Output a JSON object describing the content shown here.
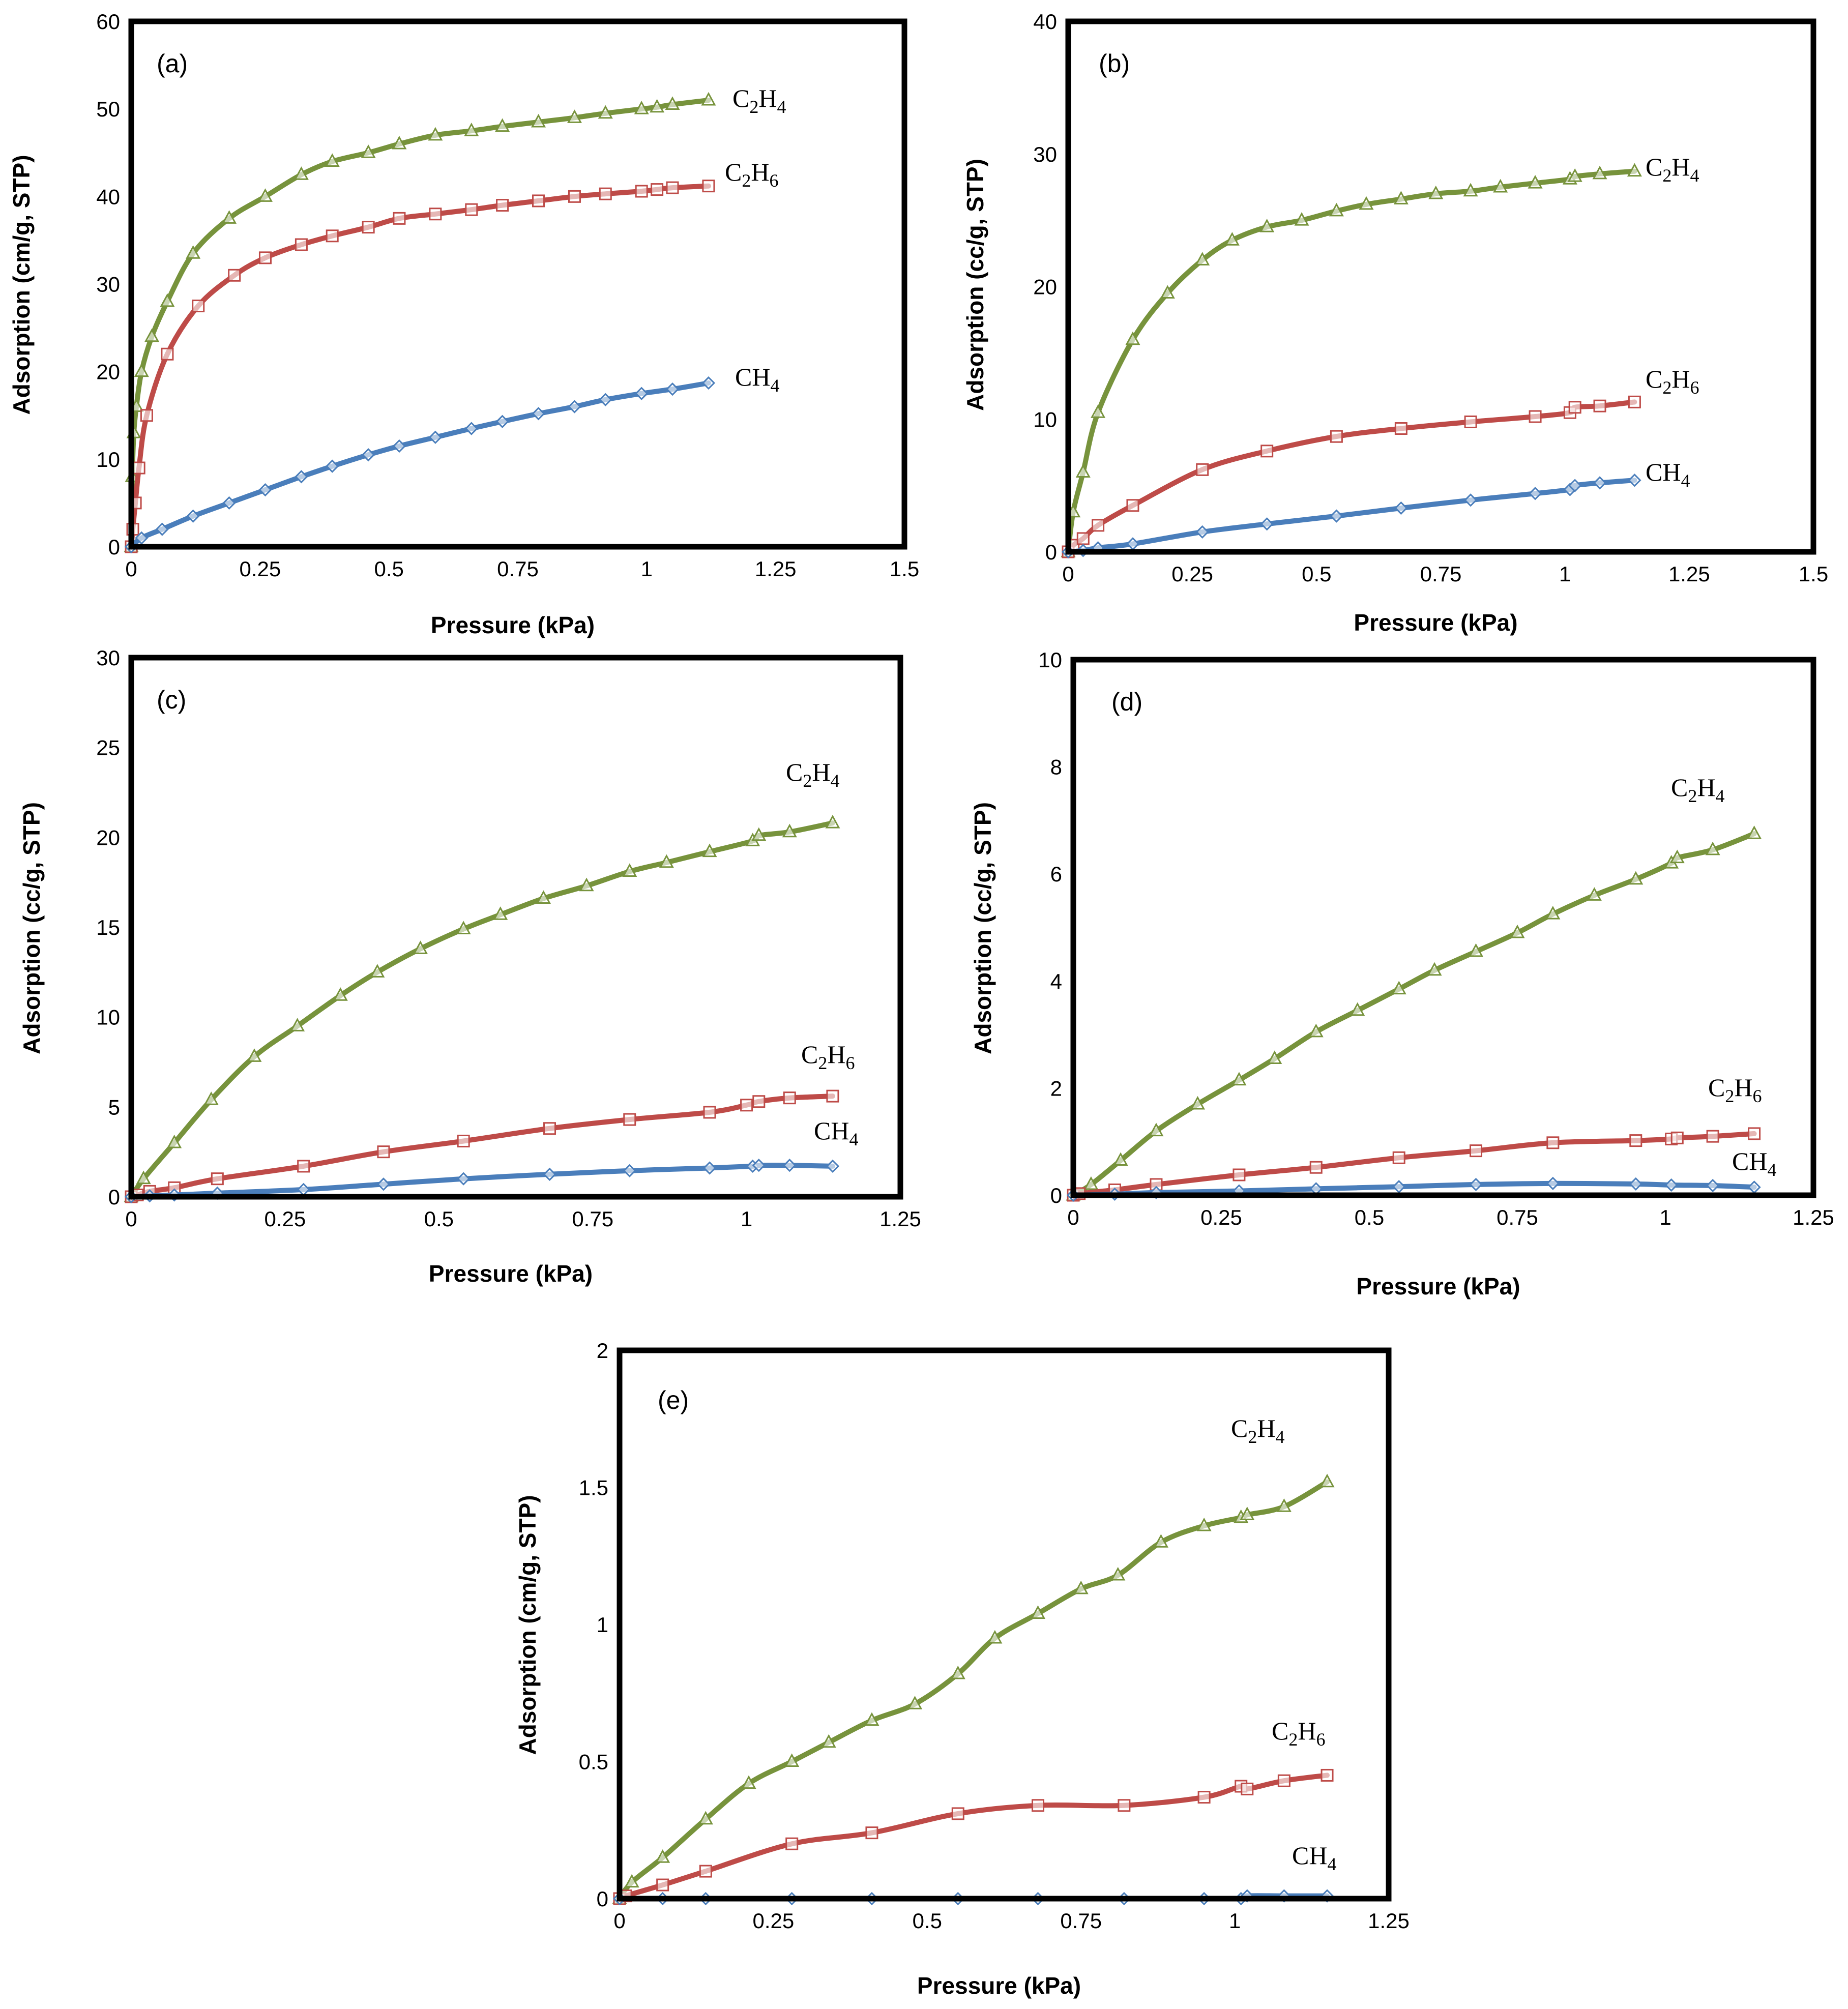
{
  "colors": {
    "CH4": "#4a7ebb",
    "C2H6": "#be4b48",
    "C2H4": "#77933c"
  },
  "markers": {
    "CH4": "diamond",
    "C2H6": "square",
    "C2H4": "triangle"
  },
  "chart_data": [
    {
      "type": "line",
      "panel": "(a)",
      "xlabel": "Pressure (kPa)",
      "ylabel": "Adsorption (cm/g, STP)",
      "xlim": [
        0,
        1.5
      ],
      "ylim": [
        0,
        60
      ],
      "xticks": [
        "0",
        "0.25",
        "0.5",
        "0.75",
        "1",
        "1.25",
        "1.5"
      ],
      "yticks": [
        "0",
        "10",
        "20",
        "30",
        "40",
        "50",
        "60"
      ],
      "series": [
        {
          "name": "C2H4",
          "label": {
            "main": "C",
            "sub1": "2",
            "mid": "H",
            "sub2": "4"
          },
          "x": [
            0,
            0.002,
            0.005,
            0.01,
            0.02,
            0.04,
            0.07,
            0.12,
            0.19,
            0.26,
            0.33,
            0.39,
            0.46,
            0.52,
            0.59,
            0.66,
            0.72,
            0.79,
            0.86,
            0.92,
            0.99,
            1.02,
            1.05,
            1.12
          ],
          "y": [
            0,
            8,
            13,
            16,
            20,
            24,
            28,
            33.5,
            37.5,
            40,
            42.5,
            44,
            45,
            46,
            47,
            47.5,
            48,
            48.5,
            49,
            49.5,
            50,
            50.2,
            50.5,
            51
          ]
        },
        {
          "name": "C2H6",
          "label": {
            "main": "C",
            "sub1": "2",
            "mid": "H",
            "sub2": "6"
          },
          "x": [
            0,
            0.003,
            0.008,
            0.015,
            0.03,
            0.07,
            0.13,
            0.2,
            0.26,
            0.33,
            0.39,
            0.46,
            0.52,
            0.59,
            0.66,
            0.72,
            0.79,
            0.86,
            0.92,
            0.99,
            1.02,
            1.05,
            1.12
          ],
          "y": [
            0,
            2,
            5,
            9,
            15,
            22,
            27.5,
            31,
            33,
            34.5,
            35.5,
            36.5,
            37.5,
            38,
            38.5,
            39,
            39.5,
            40,
            40.3,
            40.6,
            40.8,
            41,
            41.2
          ]
        },
        {
          "name": "CH4",
          "label": {
            "main": "CH",
            "sub1": "4",
            "mid": "",
            "sub2": ""
          },
          "x": [
            0,
            0.02,
            0.06,
            0.12,
            0.19,
            0.26,
            0.33,
            0.39,
            0.46,
            0.52,
            0.59,
            0.66,
            0.72,
            0.79,
            0.86,
            0.92,
            0.99,
            1.05,
            1.12
          ],
          "y": [
            0,
            1,
            2,
            3.5,
            5,
            6.5,
            8,
            9.2,
            10.5,
            11.5,
            12.5,
            13.5,
            14.3,
            15.2,
            16,
            16.8,
            17.5,
            18,
            18.7
          ]
        }
      ]
    },
    {
      "type": "line",
      "panel": "(b)",
      "xlabel": "Pressure (kPa)",
      "ylabel": "Adsorption (cc/g, STP)",
      "xlim": [
        0,
        1.5
      ],
      "ylim": [
        0,
        40
      ],
      "xticks": [
        "0",
        "0.25",
        "0.5",
        "0.75",
        "1",
        "1.25",
        "1.5"
      ],
      "yticks": [
        "0",
        "10",
        "20",
        "30",
        "40"
      ],
      "series": [
        {
          "name": "C2H4",
          "label": {
            "main": "C",
            "sub1": "2",
            "mid": "H",
            "sub2": "4"
          },
          "x": [
            0,
            0.01,
            0.03,
            0.06,
            0.13,
            0.2,
            0.27,
            0.33,
            0.4,
            0.47,
            0.54,
            0.6,
            0.67,
            0.74,
            0.81,
            0.87,
            0.94,
            1.01,
            1.02,
            1.07,
            1.14
          ],
          "y": [
            0,
            3,
            6,
            10.5,
            16,
            19.5,
            22,
            23.5,
            24.5,
            25,
            25.7,
            26.2,
            26.6,
            27,
            27.2,
            27.5,
            27.8,
            28.1,
            28.3,
            28.5,
            28.7
          ]
        },
        {
          "name": "C2H6",
          "label": {
            "main": "C",
            "sub1": "2",
            "mid": "H",
            "sub2": "6"
          },
          "x": [
            0,
            0.01,
            0.03,
            0.06,
            0.13,
            0.27,
            0.4,
            0.54,
            0.67,
            0.81,
            0.94,
            1.01,
            1.02,
            1.07,
            1.14
          ],
          "y": [
            0,
            0.5,
            1,
            2,
            3.5,
            6.2,
            7.6,
            8.7,
            9.3,
            9.8,
            10.2,
            10.5,
            10.9,
            11,
            11.3
          ]
        },
        {
          "name": "CH4",
          "label": {
            "main": "CH",
            "sub1": "4",
            "mid": "",
            "sub2": ""
          },
          "x": [
            0,
            0.03,
            0.06,
            0.13,
            0.27,
            0.4,
            0.54,
            0.67,
            0.81,
            0.94,
            1.01,
            1.02,
            1.07,
            1.14
          ],
          "y": [
            0,
            0.1,
            0.3,
            0.6,
            1.5,
            2.1,
            2.7,
            3.3,
            3.9,
            4.4,
            4.7,
            5,
            5.2,
            5.4
          ]
        }
      ]
    },
    {
      "type": "line",
      "panel": "(c)",
      "xlabel": "Pressure (kPa)",
      "ylabel": "Adsorption (cc/g, STP)",
      "xlim": [
        0,
        1.25
      ],
      "ylim": [
        0,
        30
      ],
      "xticks": [
        "0",
        "0.25",
        "0.5",
        "0.75",
        "1",
        "1.25"
      ],
      "yticks": [
        "0",
        "5",
        "10",
        "15",
        "20",
        "25",
        "30"
      ],
      "series": [
        {
          "name": "C2H4",
          "label": {
            "main": "C",
            "sub1": "2",
            "mid": "H",
            "sub2": "4"
          },
          "x": [
            0,
            0.02,
            0.07,
            0.13,
            0.2,
            0.27,
            0.34,
            0.4,
            0.47,
            0.54,
            0.6,
            0.67,
            0.74,
            0.81,
            0.87,
            0.94,
            1.01,
            1.02,
            1.07,
            1.14
          ],
          "y": [
            0,
            1,
            3,
            5.4,
            7.8,
            9.5,
            11.2,
            12.5,
            13.8,
            14.9,
            15.7,
            16.6,
            17.3,
            18.1,
            18.6,
            19.2,
            19.8,
            20.1,
            20.3,
            20.8
          ]
        },
        {
          "name": "C2H6",
          "label": {
            "main": "C",
            "sub1": "2",
            "mid": "H",
            "sub2": "6"
          },
          "x": [
            0,
            0.01,
            0.03,
            0.07,
            0.14,
            0.28,
            0.41,
            0.54,
            0.68,
            0.81,
            0.94,
            1,
            1.02,
            1.07,
            1.14
          ],
          "y": [
            0,
            0.1,
            0.3,
            0.5,
            1,
            1.7,
            2.5,
            3.1,
            3.8,
            4.3,
            4.7,
            5.1,
            5.3,
            5.5,
            5.6
          ]
        },
        {
          "name": "CH4",
          "label": {
            "main": "CH",
            "sub1": "4",
            "mid": "",
            "sub2": ""
          },
          "x": [
            0,
            0.03,
            0.07,
            0.14,
            0.28,
            0.41,
            0.54,
            0.68,
            0.81,
            0.94,
            1.01,
            1.02,
            1.07,
            1.14
          ],
          "y": [
            0,
            0.05,
            0.1,
            0.2,
            0.4,
            0.7,
            1,
            1.25,
            1.45,
            1.6,
            1.7,
            1.75,
            1.75,
            1.7
          ]
        }
      ]
    },
    {
      "type": "line",
      "panel": "(d)",
      "xlabel": "Pressure (kPa)",
      "ylabel": "Adsorption (cc/g, STP)",
      "xlim": [
        0,
        1.25
      ],
      "ylim": [
        0,
        10
      ],
      "xticks": [
        "0",
        "0.25",
        "0.5",
        "0.75",
        "1",
        "1.25"
      ],
      "yticks": [
        "0",
        "2",
        "4",
        "6",
        "8",
        "10"
      ],
      "series": [
        {
          "name": "C2H4",
          "label": {
            "main": "C",
            "sub1": "2",
            "mid": "H",
            "sub2": "4"
          },
          "x": [
            0,
            0.03,
            0.08,
            0.14,
            0.21,
            0.28,
            0.34,
            0.41,
            0.48,
            0.55,
            0.61,
            0.68,
            0.75,
            0.81,
            0.88,
            0.95,
            1.01,
            1.02,
            1.08,
            1.15
          ],
          "y": [
            0,
            0.2,
            0.65,
            1.2,
            1.7,
            2.15,
            2.55,
            3.05,
            3.45,
            3.85,
            4.2,
            4.55,
            4.9,
            5.25,
            5.6,
            5.9,
            6.2,
            6.3,
            6.45,
            6.75
          ]
        },
        {
          "name": "C2H6",
          "label": {
            "main": "C",
            "sub1": "2",
            "mid": "H",
            "sub2": "6"
          },
          "x": [
            0,
            0.01,
            0.07,
            0.14,
            0.28,
            0.41,
            0.55,
            0.68,
            0.81,
            0.95,
            1.01,
            1.02,
            1.08,
            1.15
          ],
          "y": [
            0,
            0.03,
            0.1,
            0.2,
            0.38,
            0.52,
            0.7,
            0.83,
            0.98,
            1.02,
            1.05,
            1.07,
            1.1,
            1.15
          ]
        },
        {
          "name": "CH4",
          "label": {
            "main": "CH",
            "sub1": "4",
            "mid": "",
            "sub2": ""
          },
          "x": [
            0,
            0.07,
            0.14,
            0.28,
            0.41,
            0.55,
            0.68,
            0.81,
            0.95,
            1.01,
            1.08,
            1.15
          ],
          "y": [
            0,
            0.02,
            0.05,
            0.08,
            0.12,
            0.16,
            0.2,
            0.22,
            0.21,
            0.19,
            0.18,
            0.15
          ]
        }
      ]
    },
    {
      "type": "line",
      "panel": "(e)",
      "xlabel": "Pressure (kPa)",
      "ylabel": "Adsorption (cm/g, STP)",
      "xlim": [
        0,
        1.25
      ],
      "ylim": [
        0,
        2
      ],
      "xticks": [
        "0",
        "0.25",
        "0.5",
        "0.75",
        "1",
        "1.25"
      ],
      "yticks": [
        "0",
        "0.5",
        "1",
        "1.5",
        "2"
      ],
      "series": [
        {
          "name": "C2H4",
          "label": {
            "main": "C",
            "sub1": "2",
            "mid": "H",
            "sub2": "4"
          },
          "x": [
            0,
            0.02,
            0.07,
            0.14,
            0.21,
            0.28,
            0.34,
            0.41,
            0.48,
            0.55,
            0.61,
            0.68,
            0.75,
            0.81,
            0.88,
            0.95,
            1.01,
            1.02,
            1.08,
            1.15
          ],
          "y": [
            0,
            0.06,
            0.15,
            0.29,
            0.42,
            0.5,
            0.57,
            0.65,
            0.71,
            0.82,
            0.95,
            1.04,
            1.13,
            1.18,
            1.3,
            1.36,
            1.39,
            1.4,
            1.43,
            1.52
          ]
        },
        {
          "name": "C2H6",
          "label": {
            "main": "C",
            "sub1": "2",
            "mid": "H",
            "sub2": "6"
          },
          "x": [
            0,
            0.01,
            0.07,
            0.14,
            0.28,
            0.41,
            0.55,
            0.68,
            0.82,
            0.95,
            1.01,
            1.02,
            1.08,
            1.15
          ],
          "y": [
            0,
            0.01,
            0.05,
            0.1,
            0.2,
            0.24,
            0.31,
            0.34,
            0.34,
            0.37,
            0.41,
            0.4,
            0.43,
            0.45
          ]
        },
        {
          "name": "CH4",
          "label": {
            "main": "CH",
            "sub1": "4",
            "mid": "",
            "sub2": ""
          },
          "x": [
            0,
            0.07,
            0.14,
            0.28,
            0.41,
            0.55,
            0.68,
            0.82,
            0.95,
            1.01,
            1.02,
            1.08,
            1.15
          ],
          "y": [
            0,
            0,
            0,
            0,
            0,
            0,
            0,
            0,
            0,
            0,
            0.01,
            0.01,
            0.01
          ]
        }
      ]
    }
  ]
}
